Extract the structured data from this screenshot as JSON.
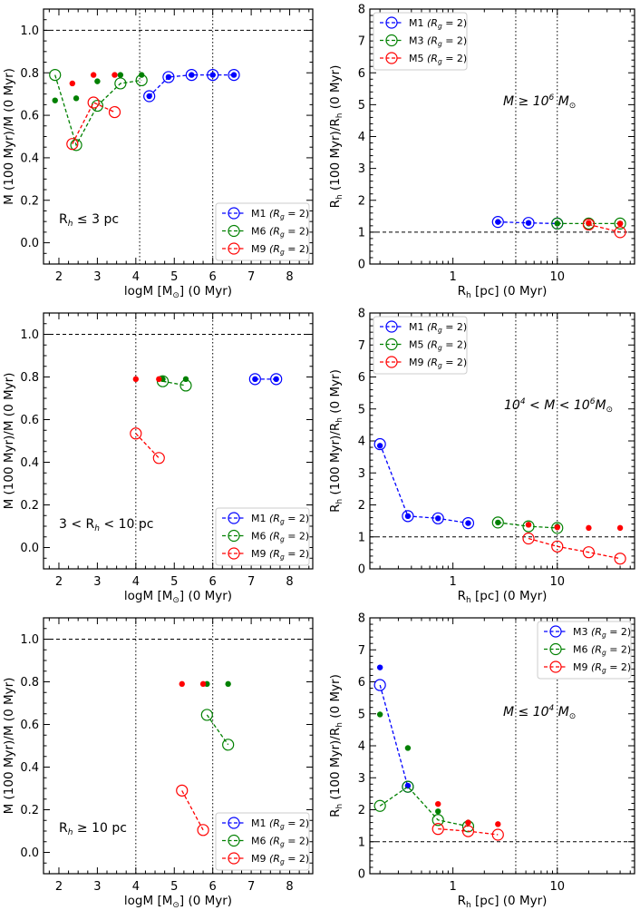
{
  "colors": {
    "blue": "#0000ff",
    "green": "#008000",
    "red": "#ff0000",
    "black": "#000000"
  },
  "chart_data": [
    {
      "type": "scatter",
      "kind": "mass",
      "xlabel": "logM [M$_\\odot$] (0 Myr)",
      "ylabel": "M (100 Myr)/M (0 Myr)",
      "xlim": [
        1.6,
        8.6
      ],
      "ylim": [
        -0.1,
        1.1
      ],
      "xticks": [
        2,
        3,
        4,
        5,
        6,
        7,
        8
      ],
      "yticks": [
        0.0,
        0.2,
        0.4,
        0.6,
        0.8,
        1.0
      ],
      "hline": 1.0,
      "vlines": [
        4.1,
        6.0
      ],
      "annotation": {
        "pre": "R",
        "sub": "h",
        "post": " ≤ 3 pc"
      },
      "legend": {
        "loc": "lower-right",
        "entries": [
          {
            "name": "M1",
            "rg": "(R",
            "rg_sub": "g",
            "rg_val": " = 2)",
            "color": "blue"
          },
          {
            "name": "M6",
            "rg": "(R",
            "rg_sub": "g",
            "rg_val": " = 2)",
            "color": "green"
          },
          {
            "name": "M9",
            "rg": "(R",
            "rg_sub": "g",
            "rg_val": " = 2)",
            "color": "red"
          }
        ]
      },
      "series": [
        {
          "name": "M1",
          "color": "blue",
          "x": [
            4.35,
            4.85,
            5.45,
            6.0,
            6.55
          ],
          "y": [
            0.69,
            0.78,
            0.79,
            0.79,
            0.79
          ],
          "dots_x": [
            4.35,
            4.85,
            5.45,
            6.0,
            6.55
          ],
          "dots_y": [
            0.69,
            0.78,
            0.79,
            0.79,
            0.79
          ]
        },
        {
          "name": "M6",
          "color": "green",
          "x": [
            1.9,
            2.45,
            3.0,
            3.6,
            4.15
          ],
          "y": [
            0.79,
            0.46,
            0.645,
            0.75,
            0.765
          ],
          "dots_x": [
            1.9,
            2.45,
            3.0,
            3.6,
            4.15
          ],
          "dots_y": [
            0.67,
            0.68,
            0.76,
            0.79,
            0.79
          ]
        },
        {
          "name": "M9",
          "color": "red",
          "x": [
            2.35,
            2.9,
            3.45
          ],
          "y": [
            0.465,
            0.66,
            0.615
          ],
          "dots_x": [
            2.35,
            2.9,
            3.45
          ],
          "dots_y": [
            0.75,
            0.79,
            0.79
          ]
        }
      ]
    },
    {
      "type": "line",
      "kind": "radius",
      "xlabel": "R$_h$ [pc] (0 Myr)",
      "ylabel": "R$_h$ (100 Myr)/R$_h$ (0 Myr)",
      "xscale": "log",
      "xlim": [
        0.16,
        55
      ],
      "ylim": [
        0,
        8
      ],
      "xticks": [
        1,
        10
      ],
      "xtick_labels": [
        "1",
        "10"
      ],
      "yticks": [
        0,
        1,
        2,
        3,
        4,
        5,
        6,
        7,
        8
      ],
      "hline": 1.0,
      "vlines": [
        4,
        10
      ],
      "annotation": {
        "text": "M ≥ 10",
        "sup": "6",
        "suffix": " M",
        "sub": "⊙"
      },
      "legend": {
        "loc": "top-left",
        "entries": [
          {
            "name": "M1",
            "rg": "(R",
            "rg_sub": "g",
            "rg_val": " = 2)",
            "color": "blue"
          },
          {
            "name": "M3",
            "rg": "(R",
            "rg_sub": "g",
            "rg_val": " = 2)",
            "color": "green"
          },
          {
            "name": "M5",
            "rg": "(R",
            "rg_sub": "g",
            "rg_val": " = 2)",
            "color": "red"
          }
        ]
      },
      "series": [
        {
          "name": "M1",
          "color": "blue",
          "x": [
            2.7,
            5.3,
            10.0
          ],
          "y": [
            1.32,
            1.29,
            1.27
          ],
          "dots_x": [
            2.7,
            5.3,
            10.0
          ],
          "dots_y": [
            1.32,
            1.29,
            1.27
          ]
        },
        {
          "name": "M3",
          "color": "green",
          "x": [
            10.0,
            20.0,
            40.0
          ],
          "y": [
            1.27,
            1.27,
            1.27
          ],
          "dots_x": [
            10.0,
            20.0,
            40.0
          ],
          "dots_y": [
            1.27,
            1.27,
            1.27
          ]
        },
        {
          "name": "M5",
          "color": "red",
          "x": [
            20.0,
            40.0
          ],
          "y": [
            1.24,
            1.0
          ],
          "dots_x": [
            20.0,
            40.0
          ],
          "dots_y": [
            1.29,
            1.27
          ]
        }
      ]
    },
    {
      "type": "scatter",
      "kind": "mass",
      "xlabel": "logM [M$_\\odot$] (0 Myr)",
      "ylabel": "M (100 Myr)/M (0 Myr)",
      "xlim": [
        1.6,
        8.6
      ],
      "ylim": [
        -0.1,
        1.1
      ],
      "xticks": [
        2,
        3,
        4,
        5,
        6,
        7,
        8
      ],
      "yticks": [
        0.0,
        0.2,
        0.4,
        0.6,
        0.8,
        1.0
      ],
      "hline": 1.0,
      "vlines": [
        4.0,
        6.0
      ],
      "annotation": {
        "pre": "3 < R",
        "sub": "h",
        "post": " < 10 pc"
      },
      "legend": {
        "loc": "lower-right",
        "entries": [
          {
            "name": "M1",
            "rg": "(R",
            "rg_sub": "g",
            "rg_val": " = 2)",
            "color": "blue"
          },
          {
            "name": "M6",
            "rg": "(R",
            "rg_sub": "g",
            "rg_val": " = 2)",
            "color": "green"
          },
          {
            "name": "M9",
            "rg": "(R",
            "rg_sub": "g",
            "rg_val": " = 2)",
            "color": "red"
          }
        ]
      },
      "series": [
        {
          "name": "M1",
          "color": "blue",
          "x": [
            7.1,
            7.65
          ],
          "y": [
            0.79,
            0.79
          ],
          "dots_x": [
            7.1,
            7.65
          ],
          "dots_y": [
            0.79,
            0.79
          ]
        },
        {
          "name": "M6",
          "color": "green",
          "x": [
            4.7,
            5.3
          ],
          "y": [
            0.78,
            0.76
          ],
          "dots_x": [
            4.7,
            5.3
          ],
          "dots_y": [
            0.79,
            0.79
          ]
        },
        {
          "name": "M9",
          "color": "red",
          "x": [
            4.0,
            4.6
          ],
          "y": [
            0.535,
            0.42
          ],
          "dots_x": [
            4.0,
            4.6
          ],
          "dots_y": [
            0.79,
            0.79
          ]
        }
      ]
    },
    {
      "type": "line",
      "kind": "radius",
      "xlabel": "R$_h$ [pc] (0 Myr)",
      "ylabel": "R$_h$ (100 Myr)/R$_h$ (0 Myr)",
      "xscale": "log",
      "xlim": [
        0.16,
        55
      ],
      "ylim": [
        0,
        8
      ],
      "xticks": [
        1,
        10
      ],
      "xtick_labels": [
        "1",
        "10"
      ],
      "yticks": [
        0,
        1,
        2,
        3,
        4,
        5,
        6,
        7,
        8
      ],
      "hline": 1.0,
      "vlines": [
        4,
        10
      ],
      "annotation": {
        "text": "10",
        "sup": "4",
        "suffix": " < M < 10",
        "sup2": "6",
        "suffix2": "M",
        "sub": "⊙"
      },
      "legend": {
        "loc": "top-left",
        "entries": [
          {
            "name": "M1",
            "rg": "(R",
            "rg_sub": "g",
            "rg_val": " = 2)",
            "color": "blue"
          },
          {
            "name": "M5",
            "rg": "(R",
            "rg_sub": "g",
            "rg_val": " = 2)",
            "color": "green"
          },
          {
            "name": "M9",
            "rg": "(R",
            "rg_sub": "g",
            "rg_val": " = 2)",
            "color": "red"
          }
        ]
      },
      "series": [
        {
          "name": "M1",
          "color": "blue",
          "x": [
            0.2,
            0.37,
            0.72,
            1.4
          ],
          "y": [
            3.9,
            1.65,
            1.58,
            1.43
          ],
          "dots_x": [
            0.2,
            0.37,
            0.72,
            1.4
          ],
          "dots_y": [
            3.85,
            1.65,
            1.58,
            1.43
          ]
        },
        {
          "name": "M5",
          "color": "green",
          "x": [
            2.7,
            5.3,
            10.0
          ],
          "y": [
            1.45,
            1.33,
            1.28
          ],
          "dots_x": [
            2.7,
            5.3,
            10.0
          ],
          "dots_y": [
            1.45,
            1.38,
            1.32
          ]
        },
        {
          "name": "M9",
          "color": "red",
          "x": [
            5.3,
            10.0,
            20.0,
            40.0
          ],
          "y": [
            0.95,
            0.7,
            0.52,
            0.32
          ],
          "dots_x": [
            5.3,
            10.0,
            20.0,
            40.0
          ],
          "dots_y": [
            1.38,
            1.3,
            1.28,
            1.28
          ]
        }
      ]
    },
    {
      "type": "scatter",
      "kind": "mass",
      "xlabel": "logM [M$_\\odot$] (0 Myr)",
      "ylabel": "M (100 Myr)/M (0 Myr)",
      "xlim": [
        1.6,
        8.6
      ],
      "ylim": [
        -0.1,
        1.1
      ],
      "xticks": [
        2,
        3,
        4,
        5,
        6,
        7,
        8
      ],
      "yticks": [
        0.0,
        0.2,
        0.4,
        0.6,
        0.8,
        1.0
      ],
      "hline": 1.0,
      "vlines": [
        4.0,
        6.0
      ],
      "annotation": {
        "pre": "R",
        "sub": "h",
        "post": " ≥ 10 pc"
      },
      "legend": {
        "loc": "lower-right",
        "entries": [
          {
            "name": "M1",
            "rg": "(R",
            "rg_sub": "g",
            "rg_val": " = 2)",
            "color": "blue"
          },
          {
            "name": "M6",
            "rg": "(R",
            "rg_sub": "g",
            "rg_val": " = 2)",
            "color": "green"
          },
          {
            "name": "M9",
            "rg": "(R",
            "rg_sub": "g",
            "rg_val": " = 2)",
            "color": "red"
          }
        ]
      },
      "series": [
        {
          "name": "M1",
          "color": "blue",
          "x": [],
          "y": [],
          "dots_x": [],
          "dots_y": []
        },
        {
          "name": "M6",
          "color": "green",
          "x": [
            5.85,
            6.4
          ],
          "y": [
            0.645,
            0.505
          ],
          "dots_x": [
            5.85,
            6.4
          ],
          "dots_y": [
            0.79,
            0.79
          ]
        },
        {
          "name": "M9",
          "color": "red",
          "x": [
            5.2,
            5.75
          ],
          "y": [
            0.29,
            0.105
          ],
          "dots_x": [
            5.2,
            5.75
          ],
          "dots_y": [
            0.79,
            0.79
          ]
        }
      ]
    },
    {
      "type": "line",
      "kind": "radius",
      "xlabel": "R$_h$ [pc] (0 Myr)",
      "ylabel": "R$_h$ (100 Myr)/R$_h$ (0 Myr)",
      "xscale": "log",
      "xlim": [
        0.16,
        55
      ],
      "ylim": [
        0,
        8
      ],
      "xticks": [
        1,
        10
      ],
      "xtick_labels": [
        "1",
        "10"
      ],
      "yticks": [
        0,
        1,
        2,
        3,
        4,
        5,
        6,
        7,
        8
      ],
      "hline": 1.0,
      "vlines": [
        4,
        10
      ],
      "annotation": {
        "text": "M ≤ 10",
        "sup": "4",
        "suffix": " M",
        "sub": "⊙"
      },
      "legend": {
        "loc": "top-right",
        "entries": [
          {
            "name": "M3",
            "rg": "(R",
            "rg_sub": "g",
            "rg_val": " = 2)",
            "color": "blue"
          },
          {
            "name": "M6",
            "rg": "(R",
            "rg_sub": "g",
            "rg_val": " = 2)",
            "color": "green"
          },
          {
            "name": "M9",
            "rg": "(R",
            "rg_sub": "g",
            "rg_val": " = 2)",
            "color": "red"
          }
        ]
      },
      "series": [
        {
          "name": "M3",
          "color": "blue",
          "x": [
            0.2,
            0.37
          ],
          "y": [
            5.9,
            2.72
          ],
          "dots_x": [
            0.2,
            0.37
          ],
          "dots_y": [
            6.45,
            2.75
          ]
        },
        {
          "name": "M6",
          "color": "green",
          "x": [
            0.2,
            0.37,
            0.72,
            1.4
          ],
          "y": [
            2.12,
            2.72,
            1.68,
            1.48
          ],
          "dots_x": [
            0.2,
            0.37,
            0.72,
            1.4
          ],
          "dots_y": [
            4.98,
            3.93,
            1.95,
            1.6
          ]
        },
        {
          "name": "M9",
          "color": "red",
          "x": [
            0.72,
            1.4,
            2.7
          ],
          "y": [
            1.4,
            1.33,
            1.22
          ],
          "dots_x": [
            0.72,
            1.4,
            2.7
          ],
          "dots_y": [
            2.18,
            1.6,
            1.55
          ]
        }
      ]
    }
  ]
}
